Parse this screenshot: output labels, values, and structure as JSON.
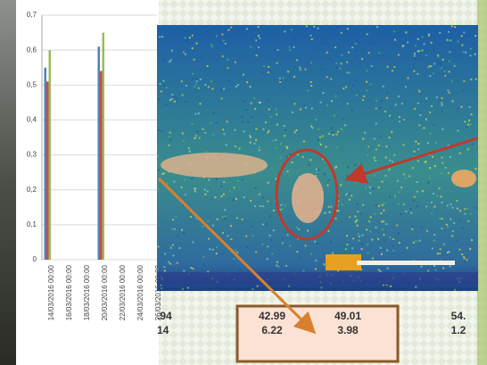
{
  "chart_data": {
    "type": "bar",
    "categories": [
      "14/03/2016 00:00",
      "16/03/2016 00:00",
      "18/03/2016 00:00",
      "20/03/2016 00:00",
      "22/03/2016 00:00",
      "24/03/2016 00:00",
      "26/03/2016 00:00"
    ],
    "series": [
      {
        "color": "#4f81bd",
        "values": [
          0.55,
          null,
          null,
          0.61,
          null,
          null,
          null
        ]
      },
      {
        "color": "#c0504d",
        "values": [
          0.51,
          null,
          null,
          0.54,
          null,
          null,
          null
        ]
      },
      {
        "color": "#9bbb59",
        "values": [
          0.6,
          null,
          null,
          0.65,
          null,
          null,
          null
        ]
      }
    ],
    "ylim": [
      0,
      0.7
    ],
    "yticks": [
      0,
      {
        "value": 0.1,
        "label": "0,1"
      },
      {
        "value": 0.2,
        "label": "0,2"
      },
      {
        "value": 0.3,
        "label": "0,3"
      },
      {
        "value": 0.4,
        "label": "0,4"
      },
      {
        "value": 0.5,
        "label": "0,5"
      },
      {
        "value": 0.6,
        "label": "0,6"
      },
      {
        "value": 0.7,
        "label": "0,7"
      }
    ],
    "grid": true
  },
  "image_panel": {
    "labels": [
      {
        "top": ".94",
        "bottom": "14"
      },
      {
        "top": "42.99",
        "bottom": "6.22"
      },
      {
        "top": "49.01",
        "bottom": "3.98"
      },
      {
        "top": "54.",
        "bottom": "1.2"
      }
    ]
  }
}
